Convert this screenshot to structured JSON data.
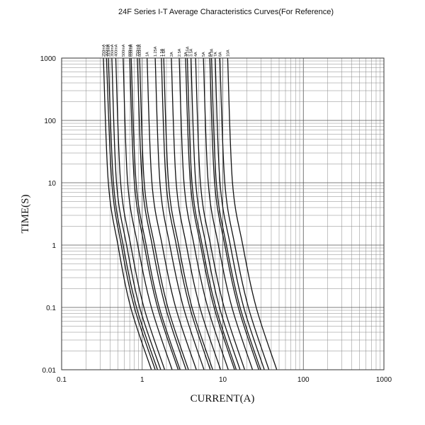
{
  "chart_data": {
    "type": "line",
    "title": "24F Series  I-T  Average Characteristics Curves(For Reference)",
    "xlabel": "CURRENT(A)",
    "ylabel": "TIME(S)",
    "x_scale": "log",
    "y_scale": "log",
    "xlim": [
      0.1,
      1000
    ],
    "ylim": [
      0.01,
      1000
    ],
    "x_ticks": [
      "0.1",
      "1",
      "10",
      "100",
      "1000"
    ],
    "y_ticks": [
      "0.01",
      "0.1",
      "1",
      "10",
      "100",
      "1000"
    ],
    "grid": true,
    "series": [
      {
        "name": "250mA",
        "points": [
          [
            0.33,
            1000
          ],
          [
            0.38,
            10
          ],
          [
            0.5,
            1
          ],
          [
            0.72,
            0.1
          ],
          [
            1.3,
            0.01
          ]
        ]
      },
      {
        "name": "300mA",
        "points": [
          [
            0.36,
            1000
          ],
          [
            0.42,
            10
          ],
          [
            0.55,
            1
          ],
          [
            0.8,
            0.1
          ],
          [
            1.45,
            0.01
          ]
        ]
      },
      {
        "name": "315mA",
        "points": [
          [
            0.38,
            1000
          ],
          [
            0.44,
            10
          ],
          [
            0.58,
            1
          ],
          [
            0.85,
            0.1
          ],
          [
            1.55,
            0.01
          ]
        ]
      },
      {
        "name": "350mA",
        "points": [
          [
            0.42,
            1000
          ],
          [
            0.48,
            10
          ],
          [
            0.64,
            1
          ],
          [
            0.93,
            0.1
          ],
          [
            1.7,
            0.01
          ]
        ]
      },
      {
        "name": "400mA",
        "points": [
          [
            0.47,
            1000
          ],
          [
            0.54,
            10
          ],
          [
            0.72,
            1
          ],
          [
            1.05,
            0.1
          ],
          [
            1.9,
            0.01
          ]
        ]
      },
      {
        "name": "500mA",
        "points": [
          [
            0.58,
            1000
          ],
          [
            0.66,
            10
          ],
          [
            0.88,
            1
          ],
          [
            1.3,
            0.1
          ],
          [
            2.35,
            0.01
          ]
        ]
      },
      {
        "name": "600mA",
        "points": [
          [
            0.7,
            1000
          ],
          [
            0.8,
            10
          ],
          [
            1.06,
            1
          ],
          [
            1.55,
            0.1
          ],
          [
            2.8,
            0.01
          ]
        ]
      },
      {
        "name": "630mA",
        "points": [
          [
            0.73,
            1000
          ],
          [
            0.84,
            10
          ],
          [
            1.12,
            1
          ],
          [
            1.63,
            0.1
          ],
          [
            2.95,
            0.01
          ]
        ]
      },
      {
        "name": "750mA",
        "points": [
          [
            0.87,
            1000
          ],
          [
            1.0,
            10
          ],
          [
            1.33,
            1
          ],
          [
            1.95,
            0.1
          ],
          [
            3.5,
            0.01
          ]
        ]
      },
      {
        "name": "800mA",
        "points": [
          [
            0.93,
            1000
          ],
          [
            1.06,
            10
          ],
          [
            1.42,
            1
          ],
          [
            2.08,
            0.1
          ],
          [
            3.75,
            0.01
          ]
        ]
      },
      {
        "name": "1A",
        "points": [
          [
            1.15,
            1000
          ],
          [
            1.32,
            10
          ],
          [
            1.77,
            1
          ],
          [
            2.6,
            0.1
          ],
          [
            4.7,
            0.01
          ]
        ]
      },
      {
        "name": "1.25A",
        "points": [
          [
            1.45,
            1000
          ],
          [
            1.66,
            10
          ],
          [
            2.2,
            1
          ],
          [
            3.25,
            0.1
          ],
          [
            5.85,
            0.01
          ]
        ]
      },
      {
        "name": "1.5A",
        "points": [
          [
            1.73,
            1000
          ],
          [
            1.98,
            10
          ],
          [
            2.65,
            1
          ],
          [
            3.9,
            0.1
          ],
          [
            7.0,
            0.01
          ]
        ]
      },
      {
        "name": "1.6A",
        "points": [
          [
            1.85,
            1000
          ],
          [
            2.12,
            10
          ],
          [
            2.83,
            1
          ],
          [
            4.15,
            0.1
          ],
          [
            7.5,
            0.01
          ]
        ]
      },
      {
        "name": "2A",
        "points": [
          [
            2.3,
            1000
          ],
          [
            2.64,
            10
          ],
          [
            3.53,
            1
          ],
          [
            5.2,
            0.1
          ],
          [
            9.4,
            0.01
          ]
        ]
      },
      {
        "name": "2.5A",
        "points": [
          [
            2.88,
            1000
          ],
          [
            3.3,
            10
          ],
          [
            4.4,
            1
          ],
          [
            6.5,
            0.1
          ],
          [
            11.7,
            0.01
          ]
        ]
      },
      {
        "name": "3A",
        "points": [
          [
            3.45,
            1000
          ],
          [
            3.96,
            10
          ],
          [
            5.3,
            1
          ],
          [
            7.8,
            0.1
          ],
          [
            14.0,
            0.01
          ]
        ]
      },
      {
        "name": "3.15A",
        "points": [
          [
            3.63,
            1000
          ],
          [
            4.15,
            10
          ],
          [
            5.55,
            1
          ],
          [
            8.2,
            0.1
          ],
          [
            14.7,
            0.01
          ]
        ]
      },
      {
        "name": "3.5A",
        "points": [
          [
            4.03,
            1000
          ],
          [
            4.62,
            10
          ],
          [
            6.2,
            1
          ],
          [
            9.1,
            0.1
          ],
          [
            16.4,
            0.01
          ]
        ]
      },
      {
        "name": "4A",
        "points": [
          [
            4.6,
            1000
          ],
          [
            5.28,
            10
          ],
          [
            7.06,
            1
          ],
          [
            10.4,
            0.1
          ],
          [
            18.7,
            0.01
          ]
        ]
      },
      {
        "name": "5A",
        "points": [
          [
            5.75,
            1000
          ],
          [
            6.6,
            10
          ],
          [
            8.83,
            1
          ],
          [
            13.0,
            0.1
          ],
          [
            23.4,
            0.01
          ]
        ]
      },
      {
        "name": "6A",
        "points": [
          [
            6.9,
            1000
          ],
          [
            7.92,
            10
          ],
          [
            10.6,
            1
          ],
          [
            15.6,
            0.1
          ],
          [
            28.0,
            0.01
          ]
        ]
      },
      {
        "name": "6.3A",
        "points": [
          [
            7.25,
            1000
          ],
          [
            8.32,
            10
          ],
          [
            11.1,
            1
          ],
          [
            16.4,
            0.1
          ],
          [
            29.5,
            0.01
          ]
        ]
      },
      {
        "name": "7A",
        "points": [
          [
            8.05,
            1000
          ],
          [
            9.24,
            10
          ],
          [
            12.4,
            1
          ],
          [
            18.2,
            0.1
          ],
          [
            32.8,
            0.01
          ]
        ]
      },
      {
        "name": "8A",
        "points": [
          [
            9.2,
            1000
          ],
          [
            10.6,
            10
          ],
          [
            14.1,
            1
          ],
          [
            20.8,
            0.1
          ],
          [
            37.4,
            0.01
          ]
        ]
      },
      {
        "name": "10A",
        "points": [
          [
            11.5,
            1000
          ],
          [
            13.2,
            10
          ],
          [
            17.7,
            1
          ],
          [
            26.0,
            0.1
          ],
          [
            46.8,
            0.01
          ]
        ]
      }
    ]
  }
}
